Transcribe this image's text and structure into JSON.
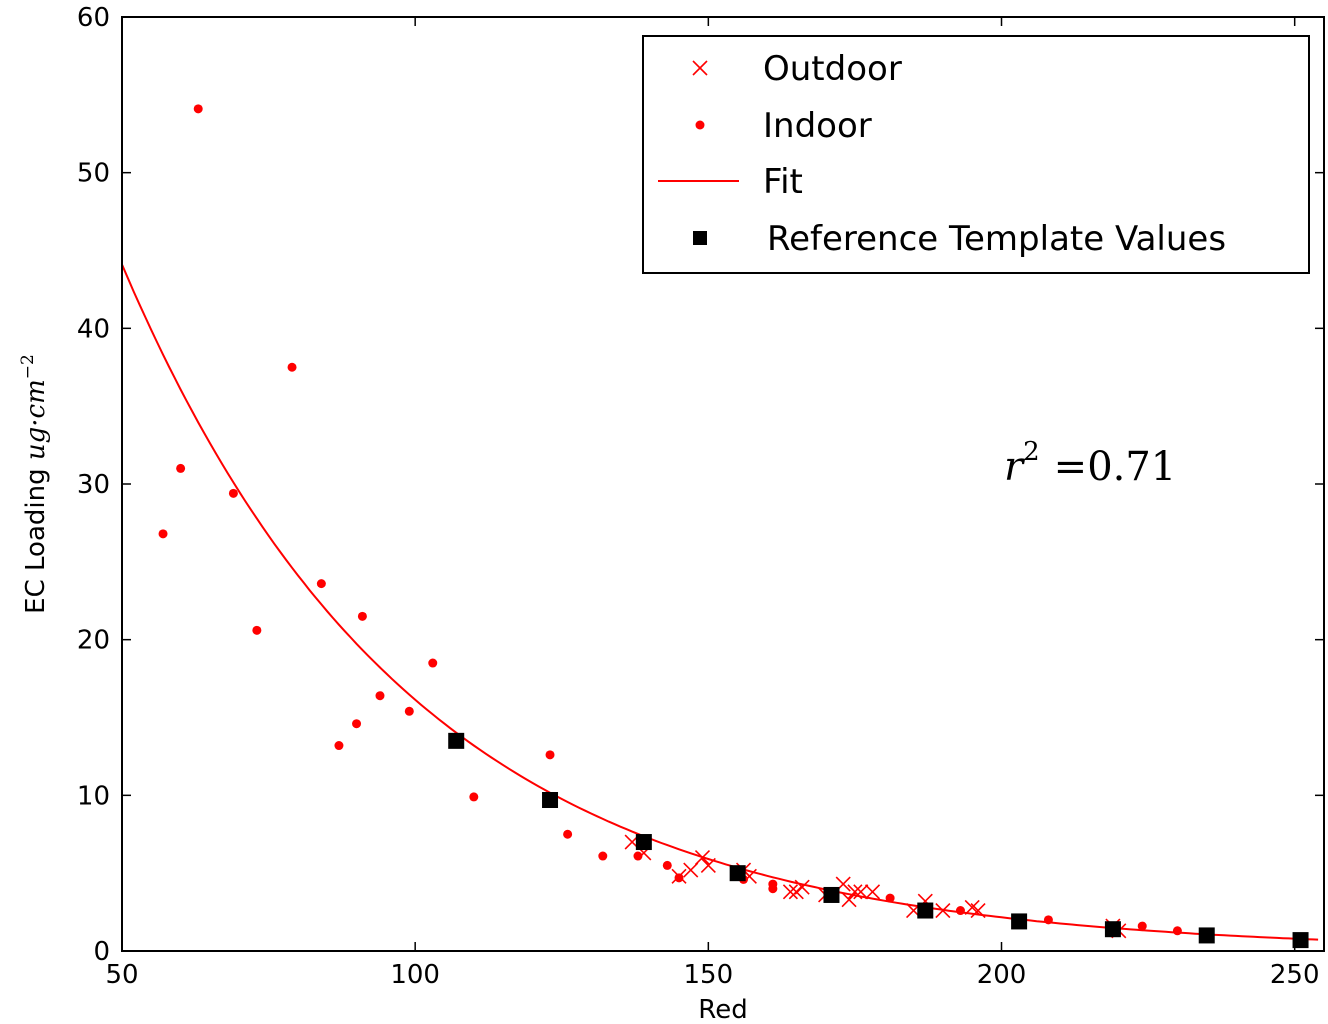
{
  "chart_data": {
    "type": "scatter",
    "xlabel": "Red",
    "ylabel_text": "EC Loading ",
    "ylabel_units": "ug·cm",
    "ylabel_exp": "−2",
    "xlim": [
      50,
      255
    ],
    "ylim": [
      0,
      60
    ],
    "x_ticks": [
      50,
      100,
      150,
      200,
      250
    ],
    "y_ticks": [
      0,
      10,
      20,
      30,
      40,
      50,
      60
    ],
    "grid": false,
    "legend_position": "top-right",
    "annotation": {
      "r_symbol": "r",
      "exp": "2",
      "value": "=0.71"
    },
    "colors": {
      "data": "#ff0000",
      "reference": "#000000",
      "axes": "#000000"
    },
    "series": [
      {
        "name": "Outdoor",
        "marker": "x",
        "points": [
          [
            137,
            7.0
          ],
          [
            139,
            6.3
          ],
          [
            145,
            4.8
          ],
          [
            147,
            5.2
          ],
          [
            149,
            6.0
          ],
          [
            150,
            5.5
          ],
          [
            156,
            5.2
          ],
          [
            157,
            4.8
          ],
          [
            164,
            3.8
          ],
          [
            165,
            3.8
          ],
          [
            166,
            4.1
          ],
          [
            170,
            3.6
          ],
          [
            173,
            4.3
          ],
          [
            174,
            3.3
          ],
          [
            175,
            3.8
          ],
          [
            176,
            3.8
          ],
          [
            178,
            3.8
          ],
          [
            185,
            2.6
          ],
          [
            187,
            3.2
          ],
          [
            190,
            2.6
          ],
          [
            195,
            2.8
          ],
          [
            196,
            2.6
          ],
          [
            219,
            1.6
          ],
          [
            220,
            1.3
          ]
        ]
      },
      {
        "name": "Indoor",
        "marker": "dot",
        "points": [
          [
            57,
            26.8
          ],
          [
            60,
            31.0
          ],
          [
            63,
            54.1
          ],
          [
            69,
            29.4
          ],
          [
            73,
            20.6
          ],
          [
            79,
            37.5
          ],
          [
            84,
            23.6
          ],
          [
            87,
            13.2
          ],
          [
            90,
            14.6
          ],
          [
            91,
            21.5
          ],
          [
            94,
            16.4
          ],
          [
            99,
            15.4
          ],
          [
            103,
            18.5
          ],
          [
            110,
            9.9
          ],
          [
            123,
            12.6
          ],
          [
            126,
            7.5
          ],
          [
            132,
            6.1
          ],
          [
            138,
            6.1
          ],
          [
            143,
            5.5
          ],
          [
            145,
            4.7
          ],
          [
            156,
            4.6
          ],
          [
            161,
            4.3
          ],
          [
            161,
            4.0
          ],
          [
            181,
            3.4
          ],
          [
            193,
            2.6
          ],
          [
            208,
            2.0
          ],
          [
            224,
            1.6
          ],
          [
            230,
            1.3
          ]
        ]
      },
      {
        "name": "Fit",
        "marker": "line",
        "model": {
          "a": 44.1,
          "b": 0.0201,
          "x0": 50
        },
        "x_range": [
          50,
          254
        ]
      },
      {
        "name": "Reference Template Values",
        "marker": "square",
        "points": [
          [
            107,
            13.5
          ],
          [
            123,
            9.7
          ],
          [
            139,
            7.0
          ],
          [
            155,
            5.0
          ],
          [
            171,
            3.6
          ],
          [
            187,
            2.6
          ],
          [
            203,
            1.9
          ],
          [
            219,
            1.4
          ],
          [
            235,
            1.0
          ],
          [
            251,
            0.7
          ]
        ]
      }
    ]
  }
}
